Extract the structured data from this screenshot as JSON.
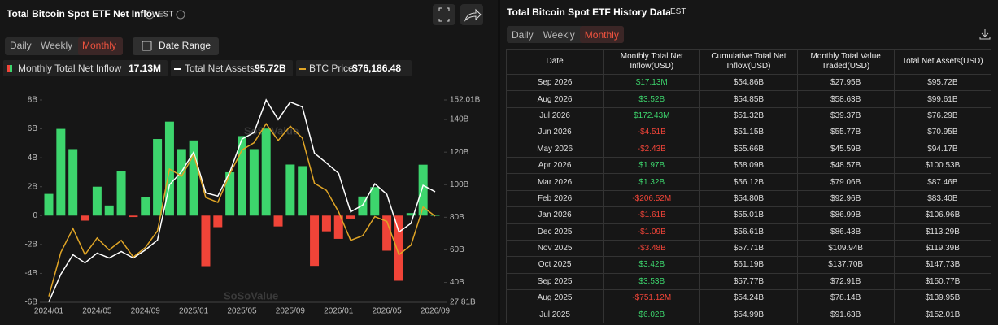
{
  "chart_data": {
    "type": "bar",
    "title": "Total Bitcoin Spot ETF Net Inflow",
    "timezone": "EST",
    "tabs": [
      "Daily",
      "Weekly",
      "Monthly"
    ],
    "active_tab": "Monthly",
    "date_range": "Date Range",
    "watermark": "SoSoValue",
    "categories": [
      "2024/01",
      null,
      null,
      null,
      "2024/05",
      null,
      null,
      null,
      "2024/09",
      null,
      null,
      null,
      "2025/01",
      null,
      null,
      null,
      "2025/05",
      null,
      null,
      null,
      "2025/09",
      null,
      null,
      null,
      "2026/01",
      null,
      null,
      null,
      "2026/05",
      null,
      null,
      null,
      "2026/09"
    ],
    "series": [
      {
        "name": "Monthly Total Net Inflow",
        "legend_value": "17.13M",
        "type": "bar",
        "color": "#3dd56d",
        "negative_color": "#f04438",
        "values": [
          1.5,
          6.0,
          4.6,
          -0.35,
          2.0,
          0.7,
          3.1,
          -0.1,
          1.3,
          5.3,
          6.5,
          4.6,
          5.2,
          -3.5,
          -0.8,
          3.0,
          5.5,
          4.6,
          6.02,
          -0.75112,
          3.53,
          3.42,
          -3.48,
          -1.09,
          -1.61,
          -0.20652,
          1.32,
          1.97,
          -2.43,
          -4.51,
          0.17243,
          3.52,
          0.01713
        ]
      },
      {
        "name": "Total Net Assets",
        "legend_value": "95.72B",
        "type": "line",
        "color": "#ffffff",
        "axis": "y2",
        "values": [
          28,
          45,
          57,
          52,
          58,
          55,
          59,
          55,
          60,
          66,
          100,
          108,
          120,
          95,
          93,
          108,
          128,
          132,
          152.01,
          139.95,
          150.77,
          147.73,
          119.39,
          113.29,
          106.96,
          83.4,
          87.46,
          100.53,
          94.17,
          70.95,
          76.29,
          99.61,
          95.72
        ]
      },
      {
        "name": "BTC Price",
        "legend_value": "$76,186.48",
        "type": "line",
        "color": "#e0a526",
        "axis": "y3",
        "values": [
          42500,
          61000,
          71000,
          60000,
          67000,
          62000,
          66000,
          59000,
          63000,
          70000,
          96000,
          93000,
          102000,
          84000,
          82000,
          94000,
          104000,
          107000,
          115000,
          108000,
          114000,
          109000,
          90000,
          87000,
          78000,
          66000,
          68000,
          76000,
          74000,
          60000,
          64000,
          80000,
          76186.48
        ]
      }
    ],
    "ylim": [
      -6,
      8
    ],
    "yticks": [
      {
        "value": -6,
        "label": "-6B"
      },
      {
        "value": -4,
        "label": "-4B"
      },
      {
        "value": -2,
        "label": "-2B"
      },
      0,
      {
        "value": 2,
        "label": "2B"
      },
      {
        "value": 4,
        "label": "4B"
      },
      {
        "value": 6,
        "label": "6B"
      },
      {
        "value": 8,
        "label": "8B"
      }
    ],
    "y2lim": [
      27.81,
      152.01
    ],
    "y2ticks": [
      {
        "value": 27.81,
        "label": "27.81B"
      },
      {
        "value": 40,
        "label": "40B"
      },
      {
        "value": 60,
        "label": "60B"
      },
      {
        "value": 80,
        "label": "80B"
      },
      {
        "value": 100,
        "label": "100B"
      },
      {
        "value": 120,
        "label": "120B"
      },
      {
        "value": 140,
        "label": "140B"
      },
      {
        "value": 152.01,
        "label": "152.01B"
      }
    ],
    "y3lim": [
      40000,
      125000
    ],
    "grid": false
  },
  "table": {
    "title": "Total Bitcoin Spot ETF History Data",
    "timezone": "EST",
    "tabs": [
      "Daily",
      "Weekly",
      "Monthly"
    ],
    "active_tab": "Monthly",
    "columns": [
      "Date",
      "Monthly Total Net Inflow(USD)",
      "Cumulative Total Net Inflow(USD)",
      "Monthly Total Value Traded(USD)",
      "Total Net Assets(USD)"
    ],
    "rows": [
      [
        "Sep 2026",
        "$17.13M",
        "$54.86B",
        "$27.95B",
        "$95.72B"
      ],
      [
        "Aug 2026",
        "$3.52B",
        "$54.85B",
        "$58.63B",
        "$99.61B"
      ],
      [
        "Jul 2026",
        "$172.43M",
        "$51.32B",
        "$39.37B",
        "$76.29B"
      ],
      [
        "Jun 2026",
        "-$4.51B",
        "$51.15B",
        "$55.77B",
        "$70.95B"
      ],
      [
        "May 2026",
        "-$2.43B",
        "$55.66B",
        "$45.59B",
        "$94.17B"
      ],
      [
        "Apr 2026",
        "$1.97B",
        "$58.09B",
        "$48.57B",
        "$100.53B"
      ],
      [
        "Mar 2026",
        "$1.32B",
        "$56.12B",
        "$79.06B",
        "$87.46B"
      ],
      [
        "Feb 2026",
        "-$206.52M",
        "$54.80B",
        "$92.96B",
        "$83.40B"
      ],
      [
        "Jan 2026",
        "-$1.61B",
        "$55.01B",
        "$86.99B",
        "$106.96B"
      ],
      [
        "Dec 2025",
        "-$1.09B",
        "$56.61B",
        "$86.43B",
        "$113.29B"
      ],
      [
        "Nov 2025",
        "-$3.48B",
        "$57.71B",
        "$109.94B",
        "$119.39B"
      ],
      [
        "Oct 2025",
        "$3.42B",
        "$61.19B",
        "$137.70B",
        "$147.73B"
      ],
      [
        "Sep 2025",
        "$3.53B",
        "$57.77B",
        "$72.91B",
        "$150.77B"
      ],
      [
        "Aug 2025",
        "-$751.12M",
        "$54.24B",
        "$78.14B",
        "$139.95B"
      ],
      [
        "Jul 2025",
        "$6.02B",
        "$54.99B",
        "$91.63B",
        "$152.01B"
      ]
    ]
  }
}
